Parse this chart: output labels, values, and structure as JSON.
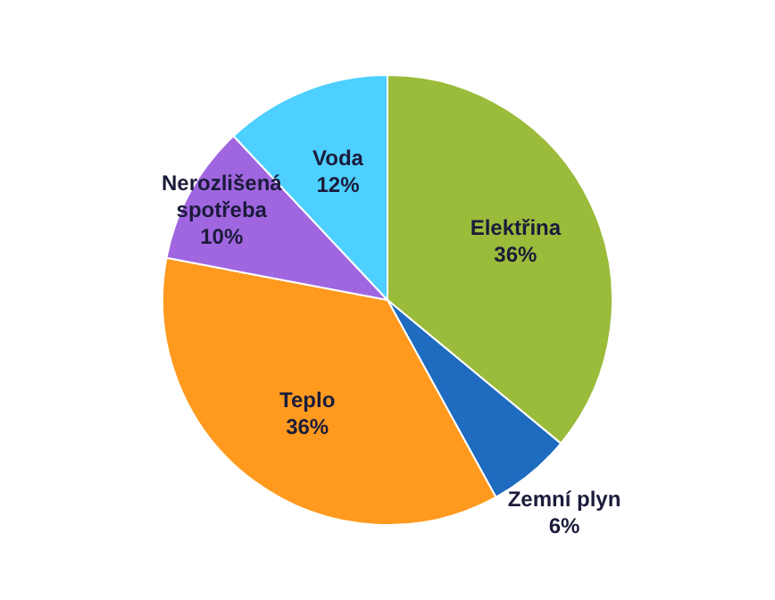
{
  "chart_data": {
    "type": "pie",
    "categories": [
      "Elektřina",
      "Zemní plyn",
      "Teplo",
      "Nerozlišená spotřeba",
      "Voda"
    ],
    "values": [
      36,
      6,
      36,
      10,
      12
    ],
    "value_labels": [
      "36%",
      "6%",
      "36%",
      "10%",
      "12%"
    ],
    "colors": [
      "#9bbb3b",
      "#1f6bbf",
      "#ff9a1f",
      "#a066e0",
      "#4dd0ff"
    ],
    "legend": false
  }
}
